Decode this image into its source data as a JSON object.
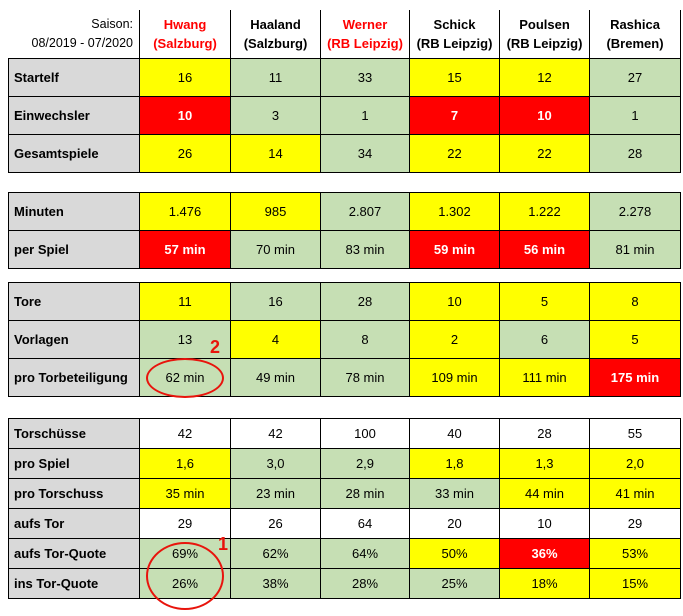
{
  "header": {
    "season_label": "Saison:",
    "season_range": "08/2019 - 07/2020",
    "players": [
      {
        "name": "Hwang",
        "club": "(Salzburg)",
        "highlight": true
      },
      {
        "name": "Haaland",
        "club": "(Salzburg)",
        "highlight": false
      },
      {
        "name": "Werner",
        "club": "(RB Leipzig)",
        "highlight": true
      },
      {
        "name": "Schick",
        "club": "(RB Leipzig)",
        "highlight": false
      },
      {
        "name": "Poulsen",
        "club": "(RB Leipzig)",
        "highlight": false
      },
      {
        "name": "Rashica",
        "club": "(Bremen)",
        "highlight": false
      }
    ]
  },
  "sections": [
    [
      {
        "label": "Startelf",
        "values": [
          "16",
          "11",
          "33",
          "15",
          "12",
          "27"
        ],
        "colors": [
          "y",
          "g",
          "g",
          "y",
          "y",
          "g"
        ]
      },
      {
        "label": "Einwechsler",
        "values": [
          "10",
          "3",
          "1",
          "7",
          "10",
          "1"
        ],
        "colors": [
          "r",
          "g",
          "g",
          "r",
          "r",
          "g"
        ]
      },
      {
        "label": "Gesamtspiele",
        "values": [
          "26",
          "14",
          "34",
          "22",
          "22",
          "28"
        ],
        "colors": [
          "y",
          "y",
          "g",
          "y",
          "y",
          "g"
        ]
      }
    ],
    [
      {
        "label": "Minuten",
        "values": [
          "1.476",
          "985",
          "2.807",
          "1.302",
          "1.222",
          "2.278"
        ],
        "colors": [
          "y",
          "y",
          "g",
          "y",
          "y",
          "g"
        ]
      },
      {
        "label": "per Spiel",
        "values": [
          "57 min",
          "70 min",
          "83 min",
          "59 min",
          "56 min",
          "81 min"
        ],
        "colors": [
          "r",
          "g",
          "g",
          "r",
          "r",
          "g"
        ]
      }
    ],
    [
      {
        "label": "Tore",
        "values": [
          "11",
          "16",
          "28",
          "10",
          "5",
          "8"
        ],
        "colors": [
          "y",
          "g",
          "g",
          "y",
          "y",
          "y"
        ]
      },
      {
        "label": "Vorlagen",
        "values": [
          "13",
          "4",
          "8",
          "2",
          "6",
          "5"
        ],
        "colors": [
          "g",
          "y",
          "g",
          "y",
          "g",
          "y"
        ]
      },
      {
        "label": "pro Torbeteiligung",
        "values": [
          "62 min",
          "49 min",
          "78 min",
          "109 min",
          "111 min",
          "175 min"
        ],
        "colors": [
          "g",
          "g",
          "g",
          "y",
          "y",
          "r"
        ]
      }
    ],
    [
      {
        "label": "Torschüsse",
        "values": [
          "42",
          "42",
          "100",
          "40",
          "28",
          "55"
        ],
        "colors": [
          "w",
          "w",
          "w",
          "w",
          "w",
          "w"
        ]
      },
      {
        "label": "pro Spiel",
        "values": [
          "1,6",
          "3,0",
          "2,9",
          "1,8",
          "1,3",
          "2,0"
        ],
        "colors": [
          "y",
          "g",
          "g",
          "y",
          "y",
          "y"
        ]
      },
      {
        "label": "pro Torschuss",
        "values": [
          "35 min",
          "23 min",
          "28 min",
          "33 min",
          "44 min",
          "41 min"
        ],
        "colors": [
          "y",
          "g",
          "g",
          "g",
          "y",
          "y"
        ]
      },
      {
        "label": "aufs Tor",
        "values": [
          "29",
          "26",
          "64",
          "20",
          "10",
          "29"
        ],
        "colors": [
          "w",
          "w",
          "w",
          "w",
          "w",
          "w"
        ]
      },
      {
        "label": "aufs Tor-Quote",
        "values": [
          "69%",
          "62%",
          "64%",
          "50%",
          "36%",
          "53%"
        ],
        "colors": [
          "g",
          "g",
          "g",
          "y",
          "r",
          "y"
        ]
      },
      {
        "label": "ins Tor-Quote",
        "values": [
          "26%",
          "38%",
          "28%",
          "25%",
          "18%",
          "15%"
        ],
        "colors": [
          "g",
          "g",
          "g",
          "g",
          "y",
          "y"
        ]
      }
    ]
  ],
  "annotations": {
    "one": "1",
    "two": "2",
    "color": "#e8140c"
  },
  "colors": {
    "yellow": "#ffff00",
    "green": "#c6dfb4",
    "red": "#ff0000",
    "label_gray": "#d9d9d9"
  }
}
